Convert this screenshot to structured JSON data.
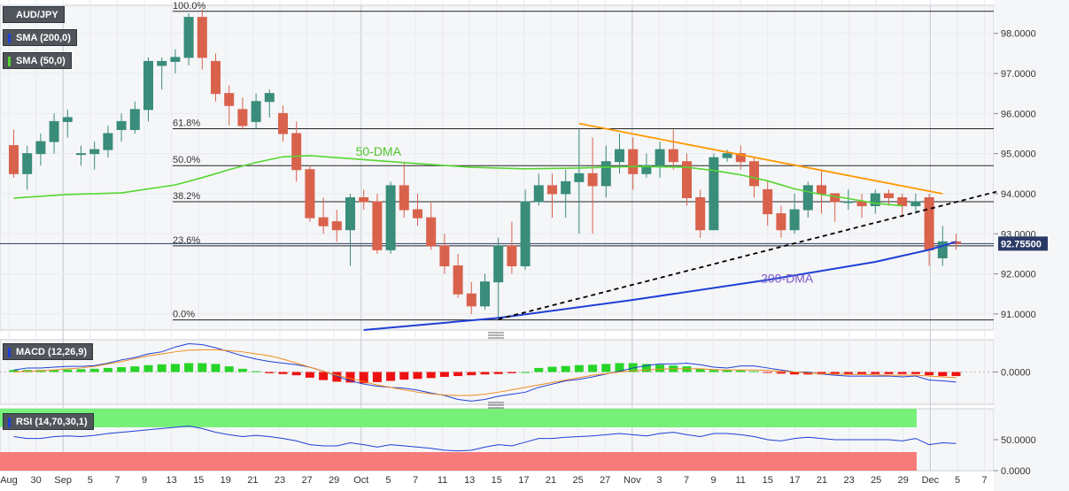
{
  "symbol_label": "AUD/JPY",
  "indicators": {
    "sma200": {
      "label": "SMA (200,0)",
      "color": "#1f3fd6"
    },
    "sma50": {
      "label": "SMA (50,0)",
      "color": "#55d631"
    },
    "macd": {
      "label": "MACD (12,26,9)"
    },
    "rsi": {
      "label": "RSI (14,70,30,1)"
    }
  },
  "colors": {
    "bull": "#3a8c7b",
    "bear": "#d9624d",
    "trend": "#ff9800",
    "last_price_bg": "#2a3a66"
  },
  "last_price_label": "92.75500",
  "chart_data": {
    "type": "candlestick",
    "price_axis": {
      "ticks": [
        "98.0000",
        "97.0000",
        "96.0000",
        "95.0000",
        "94.0000",
        "93.0000",
        "92.0000",
        "91.0000"
      ],
      "ylim": [
        90.6,
        98.7
      ]
    },
    "x_axis": {
      "ticks": [
        "Aug",
        "30",
        "Sep",
        "5",
        "7",
        "9",
        "13",
        "15",
        "19",
        "21",
        "23",
        "27",
        "29",
        "Oct",
        "5",
        "7",
        "11",
        "13",
        "15",
        "17",
        "21",
        "25",
        "27",
        "Nov",
        "3",
        "7",
        "9",
        "11",
        "15",
        "17",
        "21",
        "23",
        "25",
        "29",
        "Dec",
        "5",
        "7"
      ]
    },
    "fib_levels": [
      {
        "label": "100.0%",
        "value": 98.55
      },
      {
        "label": "61.8%",
        "value": 95.62
      },
      {
        "label": "50.0%",
        "value": 94.7
      },
      {
        "label": "38.2%",
        "value": 93.8
      },
      {
        "label": "23.6%",
        "value": 92.7
      },
      {
        "label": "0.0%",
        "value": 90.85
      }
    ],
    "annotations": [
      {
        "text": "50-DMA"
      },
      {
        "text": "200-DMA"
      }
    ],
    "candles": [
      [
        95.2,
        94.5,
        95.6,
        94.4
      ],
      [
        94.5,
        95.0,
        95.2,
        94.1
      ],
      [
        95.0,
        95.3,
        95.5,
        94.7
      ],
      [
        95.3,
        95.8,
        96.0,
        95.0
      ],
      [
        95.8,
        95.9,
        96.1,
        95.4
      ],
      [
        95.0,
        95.0,
        95.2,
        94.7
      ],
      [
        95.0,
        95.1,
        95.3,
        94.6
      ],
      [
        95.1,
        95.5,
        95.7,
        94.9
      ],
      [
        95.6,
        95.8,
        96.0,
        95.3
      ],
      [
        95.6,
        96.1,
        96.3,
        95.5
      ],
      [
        96.1,
        97.3,
        97.4,
        95.8
      ],
      [
        97.2,
        97.3,
        97.4,
        96.6
      ],
      [
        97.3,
        97.4,
        97.6,
        97.0
      ],
      [
        97.4,
        98.4,
        98.5,
        97.2
      ],
      [
        98.4,
        97.4,
        98.6,
        97.1
      ],
      [
        97.3,
        96.5,
        97.5,
        96.3
      ],
      [
        96.5,
        96.2,
        96.7,
        95.7
      ],
      [
        96.1,
        95.7,
        96.4,
        95.6
      ],
      [
        95.8,
        96.3,
        96.5,
        95.6
      ],
      [
        96.3,
        96.5,
        96.6,
        95.9
      ],
      [
        96.0,
        95.5,
        96.2,
        95.3
      ],
      [
        95.5,
        94.6,
        95.8,
        94.3
      ],
      [
        94.6,
        93.4,
        94.7,
        93.3
      ],
      [
        93.4,
        93.2,
        93.9,
        93.0
      ],
      [
        93.3,
        93.1,
        93.6,
        92.8
      ],
      [
        93.1,
        93.9,
        94.0,
        92.2
      ],
      [
        93.9,
        93.8,
        94.1,
        93.6
      ],
      [
        93.8,
        92.6,
        94.0,
        92.5
      ],
      [
        92.6,
        94.2,
        94.3,
        92.5
      ],
      [
        94.2,
        93.6,
        94.8,
        93.4
      ],
      [
        93.6,
        93.4,
        94.0,
        93.2
      ],
      [
        93.4,
        92.7,
        93.8,
        92.6
      ],
      [
        92.7,
        92.2,
        93.0,
        92.0
      ],
      [
        92.2,
        91.5,
        92.5,
        91.4
      ],
      [
        91.5,
        91.2,
        91.8,
        91.0
      ],
      [
        91.2,
        91.8,
        92.0,
        91.1
      ],
      [
        91.8,
        92.7,
        92.9,
        90.9
      ],
      [
        92.7,
        92.2,
        93.3,
        92.0
      ],
      [
        92.2,
        93.8,
        94.1,
        92.1
      ],
      [
        93.8,
        94.2,
        94.5,
        93.7
      ],
      [
        94.2,
        94.0,
        94.5,
        93.4
      ],
      [
        94.0,
        94.3,
        94.6,
        93.4
      ],
      [
        94.3,
        94.5,
        95.6,
        93.0
      ],
      [
        94.5,
        94.2,
        95.4,
        93.0
      ],
      [
        94.2,
        94.8,
        95.2,
        93.9
      ],
      [
        94.8,
        95.1,
        95.5,
        94.5
      ],
      [
        95.1,
        94.5,
        95.4,
        94.1
      ],
      [
        94.5,
        94.7,
        95.0,
        94.4
      ],
      [
        94.7,
        95.1,
        95.3,
        94.4
      ],
      [
        95.1,
        94.8,
        95.6,
        94.6
      ],
      [
        94.8,
        93.9,
        95.0,
        93.7
      ],
      [
        93.9,
        93.1,
        94.1,
        92.9
      ],
      [
        93.1,
        94.9,
        95.0,
        93.1
      ],
      [
        94.9,
        95.0,
        95.1,
        94.8
      ],
      [
        95.0,
        94.8,
        95.2,
        94.6
      ],
      [
        94.8,
        94.2,
        94.9,
        93.9
      ],
      [
        94.1,
        93.5,
        94.3,
        93.2
      ],
      [
        93.5,
        93.1,
        93.7,
        92.9
      ],
      [
        93.1,
        93.6,
        94.0,
        93.0
      ],
      [
        93.6,
        94.2,
        94.3,
        93.4
      ],
      [
        94.2,
        94.0,
        94.6,
        93.5
      ],
      [
        94.0,
        93.8,
        94.0,
        93.3
      ],
      [
        93.8,
        93.8,
        94.1,
        93.6
      ],
      [
        93.8,
        93.7,
        94.0,
        93.4
      ],
      [
        93.7,
        94.0,
        94.1,
        93.5
      ],
      [
        94.0,
        93.9,
        94.1,
        93.7
      ],
      [
        93.9,
        93.7,
        94.0,
        93.4
      ],
      [
        93.7,
        93.8,
        94.0,
        93.5
      ],
      [
        93.9,
        92.6,
        94.0,
        92.2
      ],
      [
        92.4,
        92.8,
        93.2,
        92.2
      ],
      [
        92.8,
        92.76,
        93.0,
        92.6
      ]
    ],
    "sma50": [
      [
        0,
        93.89
      ],
      [
        4,
        93.98
      ],
      [
        8,
        94.02
      ],
      [
        12,
        94.22
      ],
      [
        14,
        94.4
      ],
      [
        16,
        94.6
      ],
      [
        18,
        94.78
      ],
      [
        20,
        94.92
      ],
      [
        22,
        94.95
      ],
      [
        26,
        94.85
      ],
      [
        30,
        94.75
      ],
      [
        34,
        94.66
      ],
      [
        38,
        94.62
      ],
      [
        42,
        94.64
      ],
      [
        46,
        94.68
      ],
      [
        50,
        94.66
      ],
      [
        52,
        94.58
      ],
      [
        54,
        94.47
      ],
      [
        56,
        94.32
      ],
      [
        58,
        94.12
      ],
      [
        60,
        93.98
      ],
      [
        62,
        93.88
      ],
      [
        64,
        93.76
      ],
      [
        66,
        93.7
      ]
    ],
    "sma200": [
      [
        26,
        90.6
      ],
      [
        36,
        90.9
      ],
      [
        46,
        91.35
      ],
      [
        56,
        91.85
      ],
      [
        64,
        92.3
      ],
      [
        68,
        92.6
      ],
      [
        70,
        92.8
      ]
    ],
    "trendlines": [
      {
        "from": [
          42,
          95.75
        ],
        "to": [
          69,
          94.0
        ],
        "style": "solid",
        "color": "#ff9800"
      },
      {
        "from": [
          36,
          90.87
        ],
        "to": [
          73,
          94.05
        ],
        "style": "dashed",
        "color": "#000000"
      }
    ],
    "macd": {
      "yticks": [
        "0.0000"
      ],
      "ylim": [
        -0.8,
        0.8
      ],
      "histogram": [
        0.05,
        0.05,
        0.05,
        0.05,
        0.06,
        0.07,
        0.08,
        0.1,
        0.12,
        0.14,
        0.17,
        0.19,
        0.2,
        0.22,
        0.22,
        0.2,
        0.14,
        0.08,
        0.02,
        -0.03,
        -0.05,
        -0.08,
        -0.14,
        -0.2,
        -0.24,
        -0.26,
        -0.28,
        -0.25,
        -0.22,
        -0.19,
        -0.17,
        -0.15,
        -0.12,
        -0.1,
        -0.08,
        -0.06,
        -0.05,
        -0.03,
        0.0,
        0.1,
        0.13,
        0.15,
        0.17,
        0.18,
        0.2,
        0.22,
        0.22,
        0.2,
        0.18,
        0.16,
        0.14,
        0.08,
        0.05,
        0.05,
        0.04,
        0.02,
        -0.02,
        -0.04,
        -0.06,
        -0.06,
        -0.06,
        -0.06,
        -0.05,
        -0.05,
        -0.05,
        -0.05,
        -0.05,
        -0.05,
        -0.08,
        -0.1,
        -0.1
      ],
      "macd_line": [
        0.05,
        0.1,
        0.1,
        0.12,
        0.14,
        0.14,
        0.16,
        0.22,
        0.3,
        0.36,
        0.45,
        0.5,
        0.62,
        0.7,
        0.68,
        0.6,
        0.5,
        0.4,
        0.32,
        0.26,
        0.22,
        0.18,
        0.12,
        0.02,
        -0.1,
        -0.22,
        -0.3,
        -0.35,
        -0.38,
        -0.4,
        -0.45,
        -0.52,
        -0.58,
        -0.68,
        -0.72,
        -0.68,
        -0.6,
        -0.55,
        -0.5,
        -0.38,
        -0.3,
        -0.22,
        -0.18,
        -0.12,
        -0.05,
        0.02,
        0.1,
        0.16,
        0.2,
        0.2,
        0.22,
        0.18,
        0.12,
        0.1,
        0.15,
        0.15,
        0.1,
        0.05,
        0.0,
        0.0,
        -0.05,
        -0.08,
        -0.1,
        -0.1,
        -0.1,
        -0.1,
        -0.12,
        -0.1,
        -0.2,
        -0.22,
        -0.25
      ],
      "signal_line": [
        0.0,
        0.02,
        0.03,
        0.05,
        0.08,
        0.1,
        0.14,
        0.2,
        0.26,
        0.33,
        0.4,
        0.45,
        0.5,
        0.54,
        0.55,
        0.55,
        0.53,
        0.5,
        0.45,
        0.4,
        0.32,
        0.22,
        0.12,
        0.02,
        -0.08,
        -0.16,
        -0.24,
        -0.32,
        -0.38,
        -0.44,
        -0.5,
        -0.54,
        -0.57,
        -0.58,
        -0.58,
        -0.55,
        -0.5,
        -0.44,
        -0.38,
        -0.32,
        -0.26,
        -0.2,
        -0.14,
        -0.08,
        -0.04,
        0.0,
        0.03,
        0.05,
        0.07,
        0.08,
        0.08,
        0.08,
        0.06,
        0.05,
        0.05,
        0.05,
        0.04,
        0.02,
        0.0,
        -0.02,
        -0.04,
        -0.05,
        -0.06,
        -0.06,
        -0.07,
        -0.08,
        -0.08,
        -0.08,
        -0.1,
        -0.12,
        -0.14
      ]
    },
    "rsi": {
      "yticks": [
        "50.0000",
        "0.0000"
      ],
      "ylim": [
        0,
        100
      ],
      "overbought": 70,
      "oversold": 30,
      "line": [
        55,
        52,
        52,
        55,
        56,
        55,
        57,
        60,
        62,
        64,
        66,
        68,
        70,
        72,
        68,
        62,
        58,
        55,
        57,
        55,
        52,
        48,
        42,
        40,
        40,
        45,
        42,
        38,
        42,
        40,
        38,
        36,
        33,
        32,
        33,
        38,
        42,
        40,
        46,
        52,
        52,
        54,
        55,
        56,
        58,
        60,
        58,
        56,
        60,
        62,
        58,
        55,
        60,
        60,
        58,
        55,
        50,
        48,
        52,
        54,
        52,
        50,
        50,
        50,
        50,
        50,
        48,
        52,
        42,
        45,
        44
      ]
    }
  }
}
